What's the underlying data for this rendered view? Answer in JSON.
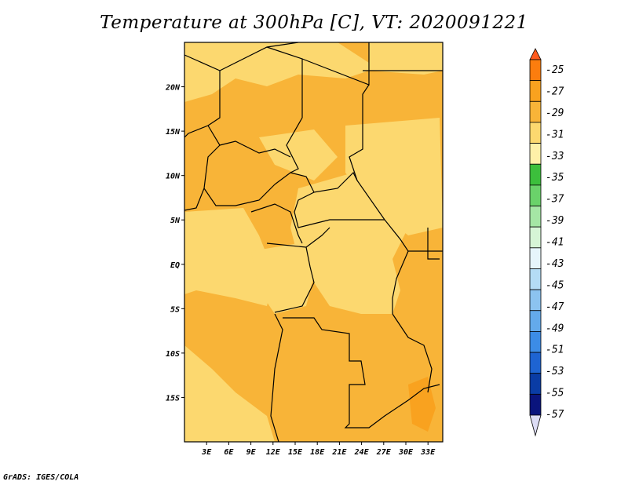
{
  "title": "Temperature at 300hPa [C], VT: 2020091221",
  "credit": "GrADS: IGES/COLA",
  "map": {
    "lon_ticks": [
      "3E",
      "6E",
      "9E",
      "12E",
      "15E",
      "18E",
      "21E",
      "24E",
      "27E",
      "30E",
      "33E"
    ],
    "lat_ticks": [
      "20N",
      "15N",
      "10N",
      "5N",
      "EQ",
      "5S",
      "10S",
      "15S"
    ],
    "lon_range": [
      0,
      35
    ],
    "lat_range": [
      -20,
      25
    ]
  },
  "colorbar": {
    "labels": [
      "-25",
      "-27",
      "-29",
      "-31",
      "-33",
      "-35",
      "-37",
      "-39",
      "-41",
      "-43",
      "-45",
      "-47",
      "-49",
      "-51",
      "-53",
      "-55",
      "-57"
    ],
    "colors": [
      "#ff5a1e",
      "#fc7d0e",
      "#f9a21f",
      "#f8b438",
      "#fcd86f",
      "#fef0a8",
      "#3cbf3c",
      "#6ad26a",
      "#a5e6a5",
      "#d6f5d6",
      "#e6f5fb",
      "#b4dcf5",
      "#8cc3f0",
      "#64aaeb",
      "#3c8ce6",
      "#1e64d2",
      "#0a3ca5",
      "#0a147d"
    ],
    "lower_arrow_color": "#dcdcf5"
  }
}
